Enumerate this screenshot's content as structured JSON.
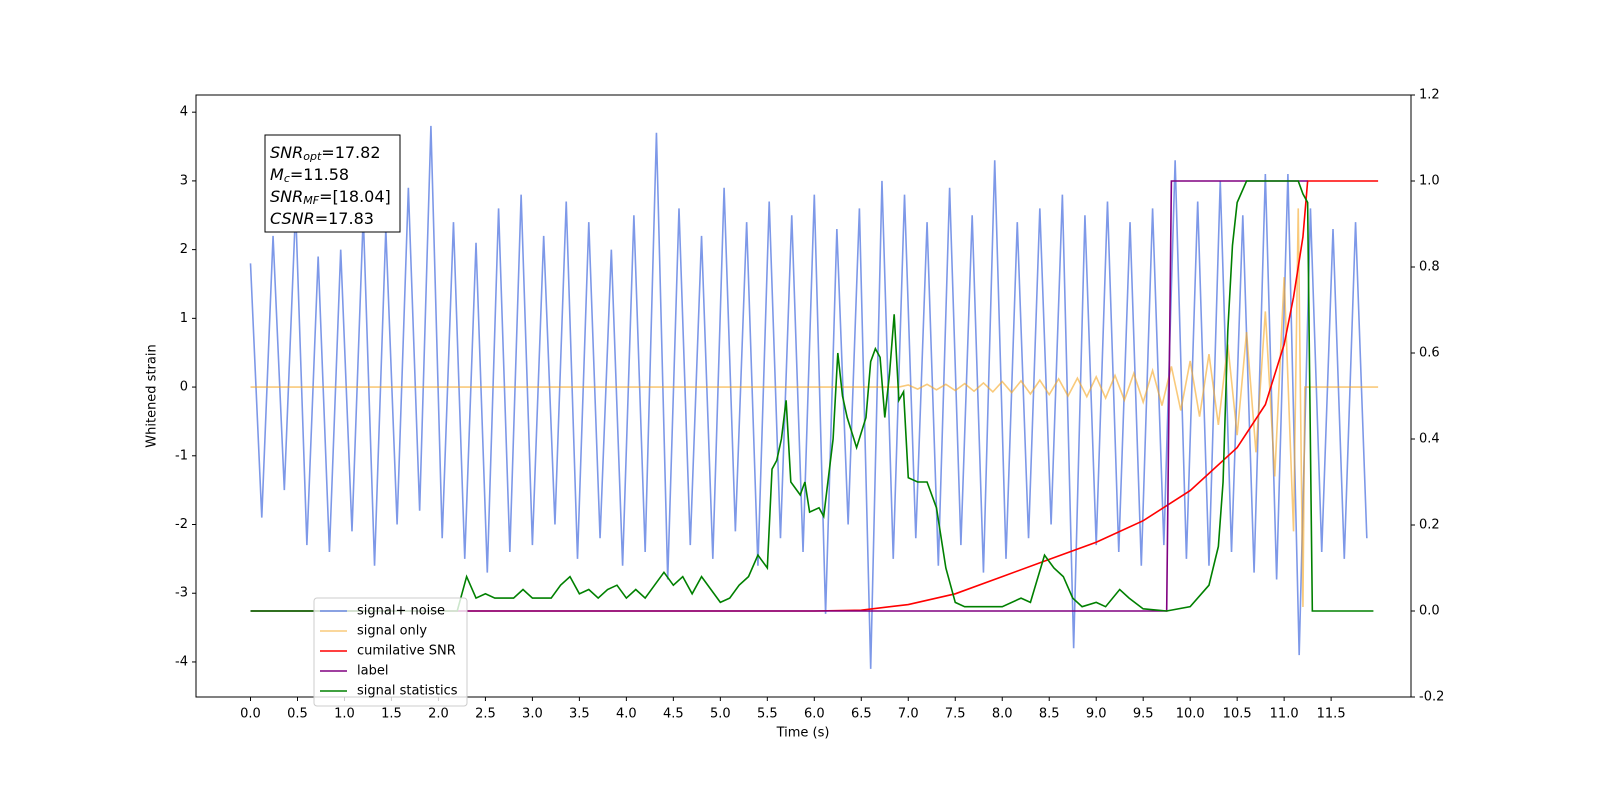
{
  "chart_data": {
    "type": "line",
    "xlabel": "Time (s)",
    "ylabel": "Whitened strain",
    "xlim": [
      -0.58,
      12.35
    ],
    "ylim": [
      -4.51,
      4.25
    ],
    "y2lim": [
      -0.2,
      1.2
    ],
    "xticks": [
      {
        "value": 0,
        "label": "0.0"
      },
      0.5,
      {
        "value": 1,
        "label": "1.0"
      },
      1.5,
      {
        "value": 2,
        "label": "2.0"
      },
      2.5,
      {
        "value": 3,
        "label": "3.0"
      },
      3.5,
      {
        "value": 4,
        "label": "4.0"
      },
      4.5,
      {
        "value": 5,
        "label": "5.0"
      },
      5.5,
      {
        "value": 6,
        "label": "6.0"
      },
      6.5,
      {
        "value": 7,
        "label": "7.0"
      },
      7.5,
      {
        "value": 8,
        "label": "8.0"
      },
      8.5,
      {
        "value": 9,
        "label": "9.0"
      },
      9.5,
      {
        "value": 10,
        "label": "10.0"
      },
      10.5,
      {
        "value": 11,
        "label": "11.0"
      },
      11.5
    ],
    "yticks": [
      -4,
      -3,
      -2,
      -1,
      0,
      1,
      2,
      3,
      4
    ],
    "y2ticks": [
      -0.2,
      {
        "value": 0,
        "label": "0.0"
      },
      0.2,
      0.4,
      0.6,
      0.8,
      {
        "value": 1,
        "label": "1.0"
      },
      1.2
    ],
    "legend": "lower left",
    "annotation": [
      {
        "base": "SNR",
        "sub": "opt",
        "rest": "=17.82"
      },
      {
        "base": "M",
        "sub": "c",
        "rest": "=11.58"
      },
      {
        "base": "SNR",
        "sub": "MF",
        "rest": "=[18.04]"
      },
      {
        "base": "CSNR",
        "rest": "=17.83"
      }
    ],
    "series": [
      {
        "name": "signal+ noise",
        "color": "#6f8de6",
        "axis": "y",
        "x": [
          0,
          0.12,
          0.24,
          0.36,
          0.48,
          0.6,
          0.72,
          0.84,
          0.96,
          1.08,
          1.2,
          1.32,
          1.44,
          1.56,
          1.68,
          1.8,
          1.92,
          2.04,
          2.16,
          2.28,
          2.4,
          2.52,
          2.64,
          2.76,
          2.88,
          3,
          3.12,
          3.24,
          3.36,
          3.48,
          3.6,
          3.72,
          3.84,
          3.96,
          4.08,
          4.2,
          4.32,
          4.44,
          4.56,
          4.68,
          4.8,
          4.92,
          5.04,
          5.16,
          5.28,
          5.4,
          5.52,
          5.64,
          5.76,
          5.88,
          6,
          6.12,
          6.24,
          6.36,
          6.48,
          6.6,
          6.72,
          6.84,
          6.96,
          7.08,
          7.2,
          7.32,
          7.44,
          7.56,
          7.68,
          7.8,
          7.92,
          8.04,
          8.16,
          8.28,
          8.4,
          8.52,
          8.64,
          8.76,
          8.88,
          9,
          9.12,
          9.24,
          9.36,
          9.48,
          9.6,
          9.72,
          9.84,
          9.96,
          10.08,
          10.2,
          10.32,
          10.44,
          10.56,
          10.68,
          10.8,
          10.92,
          11.04,
          11.16,
          11.28,
          11.4,
          11.52,
          11.64,
          11.76,
          11.88
        ],
        "values": [
          1.8,
          -1.9,
          2.2,
          -1.5,
          2.6,
          -2.3,
          1.9,
          -2.4,
          2.0,
          -2.1,
          2.5,
          -2.6,
          2.3,
          -2.0,
          2.9,
          -1.8,
          3.8,
          -2.2,
          2.4,
          -2.5,
          2.1,
          -2.7,
          2.6,
          -2.4,
          2.8,
          -2.3,
          2.2,
          -2.0,
          2.7,
          -2.5,
          2.4,
          -2.2,
          2.0,
          -2.6,
          2.5,
          -2.4,
          3.7,
          -2.8,
          2.6,
          -2.3,
          2.2,
          -2.5,
          2.9,
          -2.1,
          2.4,
          -2.6,
          2.7,
          -2.2,
          2.5,
          -2.4,
          2.8,
          -3.3,
          2.3,
          -2.0,
          2.6,
          -4.1,
          3.0,
          -2.5,
          2.8,
          -2.2,
          2.4,
          -2.6,
          2.9,
          -2.3,
          2.5,
          -2.7,
          3.3,
          -2.5,
          2.4,
          -2.2,
          2.6,
          -2.0,
          2.8,
          -3.8,
          2.5,
          -2.3,
          2.7,
          -2.4,
          2.4,
          -2.6,
          2.6,
          -2.3,
          3.3,
          -2.5,
          2.7,
          -2.6,
          3.0,
          -2.4,
          2.5,
          -2.7,
          3.1,
          -2.8,
          3.1,
          -3.9,
          2.6,
          -2.4,
          2.3,
          -2.5,
          2.4,
          -2.2
        ]
      },
      {
        "name": "signal only",
        "color": "#f5a623",
        "axis": "y",
        "x": [
          0,
          6.9,
          7.0,
          7.1,
          7.2,
          7.3,
          7.4,
          7.5,
          7.6,
          7.7,
          7.8,
          7.9,
          8.0,
          8.1,
          8.2,
          8.3,
          8.4,
          8.5,
          8.6,
          8.7,
          8.8,
          8.9,
          9.0,
          9.1,
          9.2,
          9.3,
          9.4,
          9.5,
          9.6,
          9.7,
          9.8,
          9.9,
          10.0,
          10.1,
          10.2,
          10.3,
          10.4,
          10.5,
          10.6,
          10.7,
          10.8,
          10.9,
          11.0,
          11.1,
          11.15,
          11.2,
          11.22,
          12
        ],
        "values": [
          0,
          0,
          0.03,
          -0.03,
          0.04,
          -0.04,
          0.04,
          -0.05,
          0.05,
          -0.06,
          0.06,
          -0.07,
          0.08,
          -0.08,
          0.09,
          -0.1,
          0.1,
          -0.11,
          0.12,
          -0.13,
          0.13,
          -0.14,
          0.15,
          -0.16,
          0.17,
          -0.19,
          0.2,
          -0.22,
          0.24,
          -0.27,
          0.3,
          -0.34,
          0.38,
          -0.43,
          0.48,
          -0.55,
          0.62,
          -0.7,
          0.8,
          -0.95,
          1.1,
          -1.3,
          1.6,
          -2.1,
          2.6,
          -3.2,
          0,
          0
        ]
      },
      {
        "name": "cumilative SNR",
        "color": "#ff0000",
        "axis": "y2",
        "x": [
          0,
          5.5,
          6,
          6.5,
          7,
          7.5,
          8,
          8.5,
          9,
          9.5,
          10,
          10.5,
          10.8,
          11,
          11.1,
          11.2,
          11.25,
          12
        ],
        "values": [
          0,
          0,
          0,
          0.002,
          0.015,
          0.04,
          0.08,
          0.12,
          0.16,
          0.21,
          0.28,
          0.38,
          0.48,
          0.62,
          0.73,
          0.87,
          1,
          1
        ]
      },
      {
        "name": "label",
        "color": "#800080",
        "axis": "y2",
        "x": [
          0,
          9.75,
          9.8,
          11.25
        ],
        "values": [
          0,
          0,
          1,
          1
        ]
      },
      {
        "name": "signal statistics",
        "color": "#008000",
        "axis": "y2",
        "x": [
          0,
          2.2,
          2.3,
          2.4,
          2.5,
          2.6,
          2.8,
          2.9,
          3.0,
          3.2,
          3.3,
          3.4,
          3.5,
          3.6,
          3.7,
          3.8,
          3.9,
          4.0,
          4.1,
          4.2,
          4.3,
          4.4,
          4.5,
          4.6,
          4.7,
          4.8,
          4.9,
          5.0,
          5.1,
          5.2,
          5.3,
          5.4,
          5.5,
          5.55,
          5.6,
          5.65,
          5.7,
          5.75,
          5.85,
          5.9,
          5.95,
          6.05,
          6.1,
          6.2,
          6.25,
          6.3,
          6.35,
          6.45,
          6.55,
          6.6,
          6.65,
          6.7,
          6.75,
          6.8,
          6.85,
          6.9,
          6.95,
          7.0,
          7.1,
          7.2,
          7.3,
          7.4,
          7.5,
          7.6,
          8.0,
          8.2,
          8.3,
          8.45,
          8.55,
          8.65,
          8.75,
          8.85,
          9.0,
          9.1,
          9.25,
          9.35,
          9.5,
          9.75,
          10.0,
          10.2,
          10.3,
          10.35,
          10.4,
          10.45,
          10.5,
          10.6,
          11.15,
          11.2,
          11.25,
          11.3,
          11.95
        ],
        "values": [
          0,
          0,
          0.08,
          0.03,
          0.04,
          0.03,
          0.03,
          0.05,
          0.03,
          0.03,
          0.06,
          0.08,
          0.04,
          0.05,
          0.03,
          0.05,
          0.06,
          0.03,
          0.05,
          0.03,
          0.06,
          0.09,
          0.06,
          0.08,
          0.04,
          0.08,
          0.05,
          0.02,
          0.03,
          0.06,
          0.08,
          0.13,
          0.1,
          0.33,
          0.35,
          0.4,
          0.49,
          0.3,
          0.27,
          0.3,
          0.23,
          0.24,
          0.22,
          0.4,
          0.6,
          0.5,
          0.45,
          0.38,
          0.45,
          0.58,
          0.61,
          0.59,
          0.45,
          0.55,
          0.69,
          0.49,
          0.51,
          0.31,
          0.3,
          0.3,
          0.24,
          0.1,
          0.02,
          0.01,
          0.01,
          0.03,
          0.02,
          0.13,
          0.1,
          0.08,
          0.03,
          0.01,
          0.02,
          0.01,
          0.05,
          0.03,
          0.005,
          0,
          0.01,
          0.06,
          0.15,
          0.3,
          0.65,
          0.85,
          0.95,
          1,
          1,
          0.97,
          0.95,
          0,
          0
        ]
      }
    ]
  }
}
